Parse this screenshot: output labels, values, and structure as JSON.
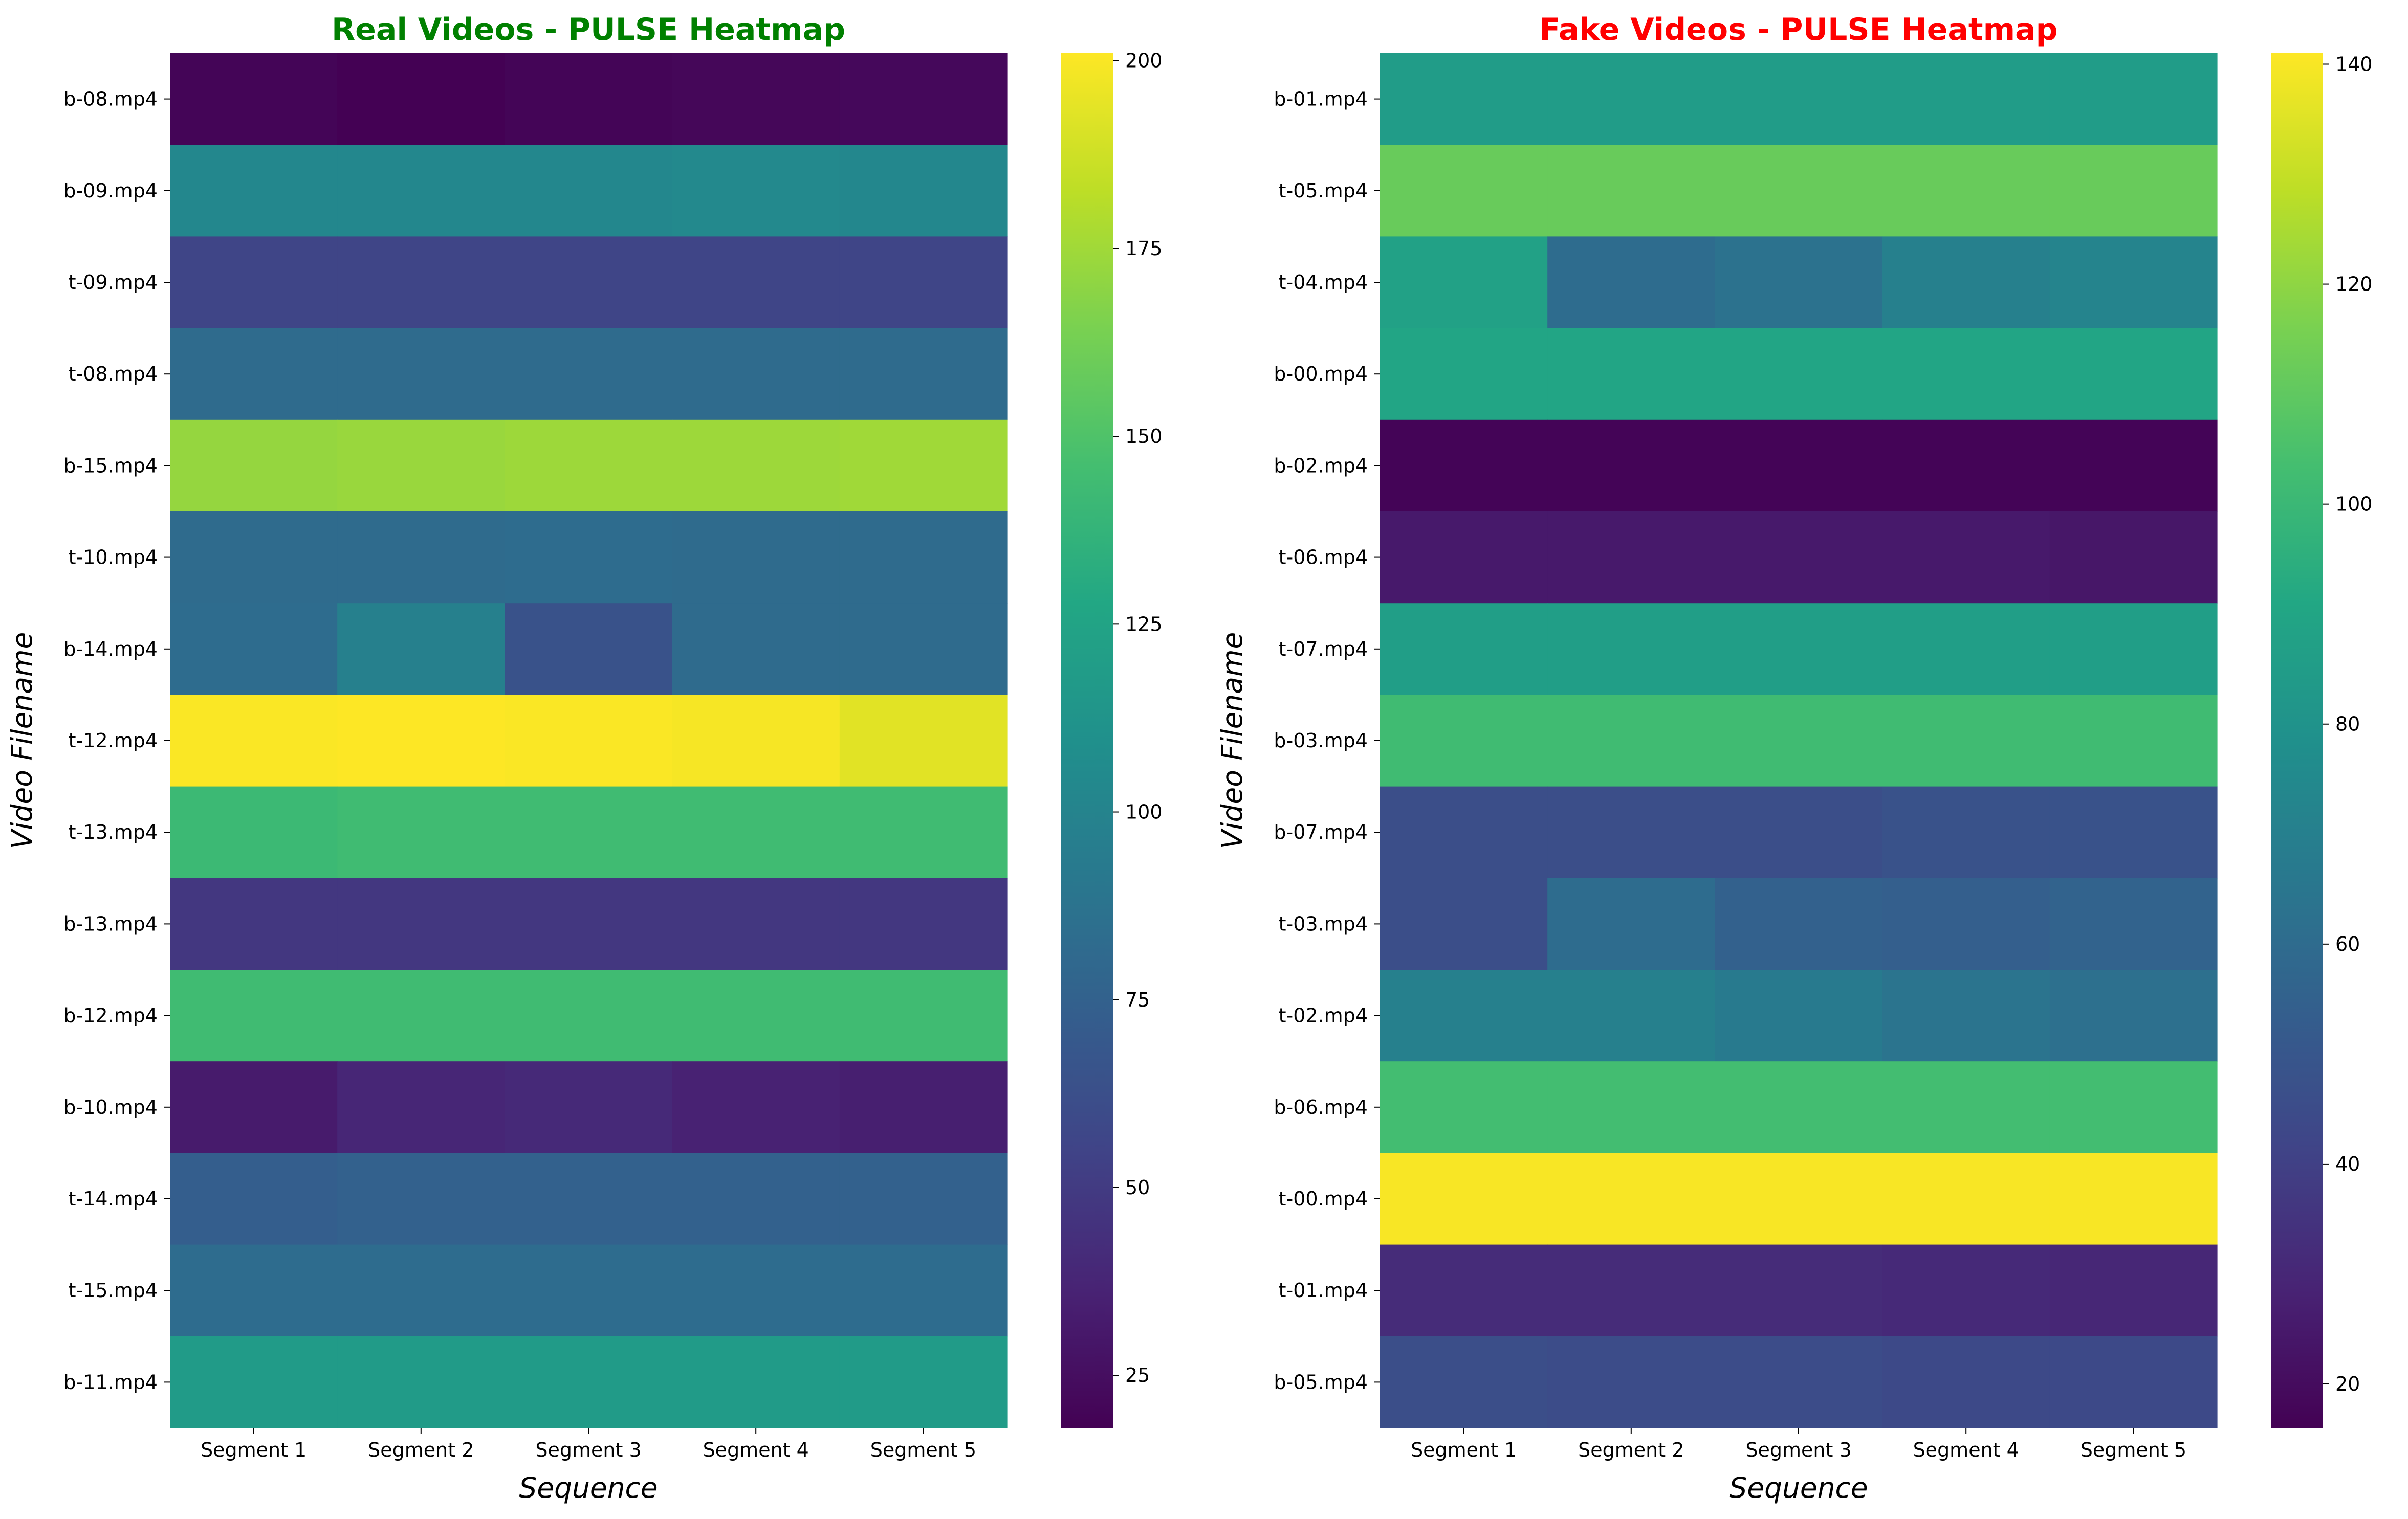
{
  "chart_data": [
    {
      "type": "heatmap",
      "title": "Real Videos - PULSE Heatmap",
      "title_color": "#008000",
      "xlabel": "Sequence",
      "ylabel": "Video Filename",
      "columns": [
        "Segment 1",
        "Segment 2",
        "Segment 3",
        "Segment 4",
        "Segment 5"
      ],
      "rows": [
        "b-08.mp4",
        "b-09.mp4",
        "t-09.mp4",
        "t-08.mp4",
        "b-15.mp4",
        "t-10.mp4",
        "b-14.mp4",
        "t-12.mp4",
        "t-13.mp4",
        "b-13.mp4",
        "b-12.mp4",
        "b-10.mp4",
        "t-14.mp4",
        "t-15.mp4",
        "b-11.mp4"
      ],
      "values": [
        [
          20,
          18,
          20,
          21,
          22
        ],
        [
          103,
          103,
          103,
          104,
          103
        ],
        [
          56,
          56,
          56,
          56,
          56
        ],
        [
          82,
          82,
          82,
          82,
          82
        ],
        [
          172,
          173,
          174,
          174,
          175
        ],
        [
          82,
          82,
          83,
          82,
          82
        ],
        [
          83,
          97,
          65,
          82,
          82
        ],
        [
          200,
          201,
          200,
          199,
          193
        ],
        [
          142,
          144,
          144,
          144,
          144
        ],
        [
          48,
          48,
          48,
          48,
          48
        ],
        [
          144,
          144,
          144,
          144,
          144
        ],
        [
          32,
          38,
          40,
          36,
          34
        ],
        [
          73,
          75,
          75,
          75,
          75
        ],
        [
          83,
          83,
          83,
          83,
          83
        ],
        [
          118,
          118,
          118,
          118,
          118
        ]
      ],
      "colorbar": {
        "vmin": 18,
        "vmax": 201,
        "ticks": [
          25,
          50,
          75,
          100,
          125,
          150,
          175,
          200
        ],
        "colormap": "viridis"
      }
    },
    {
      "type": "heatmap",
      "title": "Fake Videos - PULSE Heatmap",
      "title_color": "#ff0000",
      "xlabel": "Sequence",
      "ylabel": "Video Filename",
      "columns": [
        "Segment 1",
        "Segment 2",
        "Segment 3",
        "Segment 4",
        "Segment 5"
      ],
      "rows": [
        "b-01.mp4",
        "t-05.mp4",
        "t-04.mp4",
        "b-00.mp4",
        "b-02.mp4",
        "t-06.mp4",
        "t-07.mp4",
        "b-03.mp4",
        "b-07.mp4",
        "t-03.mp4",
        "t-02.mp4",
        "b-06.mp4",
        "t-00.mp4",
        "t-01.mp4",
        "b-05.mp4"
      ],
      "values": [
        [
          85,
          85,
          85,
          85,
          85
        ],
        [
          112,
          112,
          112,
          112,
          112
        ],
        [
          88,
          60,
          63,
          70,
          72
        ],
        [
          90,
          90,
          90,
          90,
          90
        ],
        [
          17,
          17,
          17,
          17,
          17
        ],
        [
          25,
          25,
          25,
          25,
          24
        ],
        [
          86,
          86,
          86,
          86,
          86
        ],
        [
          102,
          102,
          102,
          102,
          102
        ],
        [
          46,
          46,
          46,
          48,
          48
        ],
        [
          46,
          60,
          55,
          54,
          56
        ],
        [
          70,
          70,
          67,
          64,
          62
        ],
        [
          103,
          103,
          103,
          103,
          103
        ],
        [
          140,
          140,
          140,
          140,
          140
        ],
        [
          32,
          32,
          32,
          31,
          30
        ],
        [
          46,
          45,
          45,
          44,
          44
        ]
      ],
      "colorbar": {
        "vmin": 16,
        "vmax": 141,
        "ticks": [
          20,
          40,
          60,
          80,
          100,
          120,
          140
        ],
        "colormap": "viridis"
      }
    }
  ]
}
